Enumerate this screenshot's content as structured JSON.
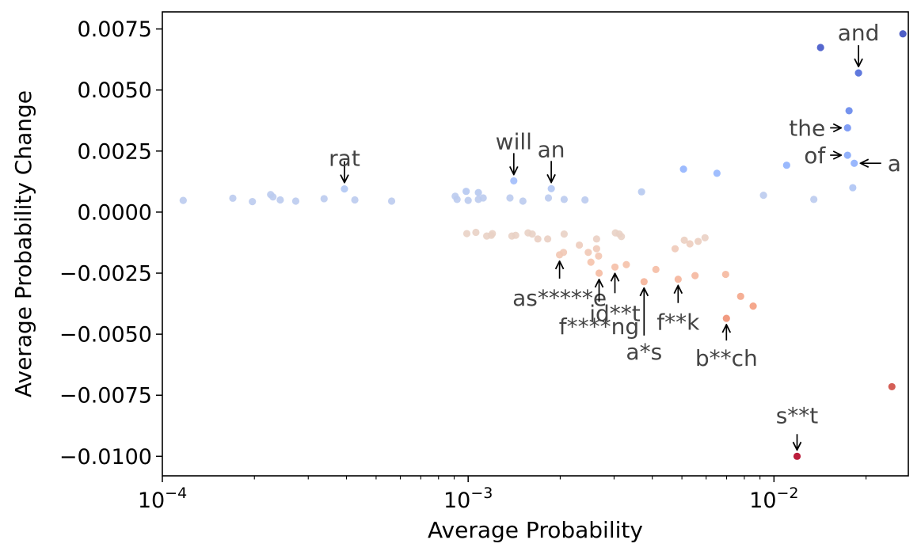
{
  "chart_data": {
    "type": "scatter",
    "title": "",
    "xlabel": "Average Probability",
    "ylabel": "Average Probability Change",
    "xscale": "log",
    "xlim": [
      0.0001,
      0.0275
    ],
    "ylim": [
      -0.0108,
      0.0082
    ],
    "grid": false,
    "legend": "none",
    "colormap": "coolwarm",
    "color_range": [
      -0.01,
      0.0073
    ],
    "x_ticks": [
      {
        "value": 0.0001,
        "base": "10",
        "exp": "−4"
      },
      {
        "value": 0.001,
        "base": "10",
        "exp": "−3"
      },
      {
        "value": 0.01,
        "base": "10",
        "exp": "−2"
      }
    ],
    "y_ticks": [
      {
        "value": 0.0075,
        "label": "0.0075"
      },
      {
        "value": 0.005,
        "label": "0.0050"
      },
      {
        "value": 0.0025,
        "label": "0.0025"
      },
      {
        "value": 0,
        "label": "0.0000"
      },
      {
        "value": -0.0025,
        "label": "−0.0025"
      },
      {
        "value": -0.005,
        "label": "−0.0050"
      },
      {
        "value": -0.0075,
        "label": "−0.0075"
      },
      {
        "value": -0.01,
        "label": "−0.0100"
      }
    ],
    "points": [
      [
        0.000117,
        0.00048
      ],
      [
        0.00017,
        0.00057
      ],
      [
        0.000197,
        0.00043
      ],
      [
        0.000226,
        0.00072
      ],
      [
        0.00023,
        0.00062
      ],
      [
        0.000243,
        0.0005
      ],
      [
        0.000273,
        0.00045
      ],
      [
        0.000338,
        0.00055
      ],
      [
        0.000394,
        0.00095
      ],
      [
        0.000426,
        0.0005
      ],
      [
        0.000562,
        0.00045
      ],
      [
        0.000907,
        0.00065
      ],
      [
        0.00092,
        0.00052
      ],
      [
        0.000985,
        0.00085
      ],
      [
        0.001,
        0.00048
      ],
      [
        0.00108,
        0.0008
      ],
      [
        0.00108,
        0.00052
      ],
      [
        0.00112,
        0.00058
      ],
      [
        0.00137,
        0.00058
      ],
      [
        0.00141,
        0.00128
      ],
      [
        0.00151,
        0.00045
      ],
      [
        0.00183,
        0.00058
      ],
      [
        0.00187,
        0.00096
      ],
      [
        0.00206,
        0.00052
      ],
      [
        0.00241,
        0.0005
      ],
      [
        0.00369,
        0.00083
      ],
      [
        0.00506,
        0.00176
      ],
      [
        0.00651,
        0.00159
      ],
      [
        0.00924,
        0.00069
      ],
      [
        0.011,
        0.00192
      ],
      [
        0.0135,
        0.00052
      ],
      [
        0.0142,
        0.00674
      ],
      [
        0.0174,
        0.00345
      ],
      [
        0.0174,
        0.00233
      ],
      [
        0.0176,
        0.00415
      ],
      [
        0.0181,
        0.001
      ],
      [
        0.0183,
        0.002
      ],
      [
        0.0189,
        0.0057
      ],
      [
        0.0264,
        0.0073
      ],
      [
        0.00099,
        -0.00088
      ],
      [
        0.00106,
        -0.00083
      ],
      [
        0.00115,
        -0.00098
      ],
      [
        0.00119,
        -0.00095
      ],
      [
        0.0012,
        -0.00088
      ],
      [
        0.00139,
        -0.00098
      ],
      [
        0.00143,
        -0.00095
      ],
      [
        0.00157,
        -0.00085
      ],
      [
        0.00162,
        -0.0009
      ],
      [
        0.00169,
        -0.0011
      ],
      [
        0.00182,
        -0.0011
      ],
      [
        0.00199,
        -0.00175
      ],
      [
        0.00205,
        -0.00165
      ],
      [
        0.00206,
        -0.0009
      ],
      [
        0.00231,
        -0.00135
      ],
      [
        0.00247,
        -0.00165
      ],
      [
        0.00252,
        -0.00205
      ],
      [
        0.00263,
        -0.0015
      ],
      [
        0.00263,
        -0.0011
      ],
      [
        0.00267,
        -0.0018
      ],
      [
        0.00268,
        -0.0025
      ],
      [
        0.00302,
        -0.00225
      ],
      [
        0.00303,
        -0.00085
      ],
      [
        0.00312,
        -0.0009
      ],
      [
        0.00317,
        -0.001
      ],
      [
        0.00329,
        -0.00215
      ],
      [
        0.00376,
        -0.00285
      ],
      [
        0.00411,
        -0.00235
      ],
      [
        0.00475,
        -0.0015
      ],
      [
        0.00486,
        -0.00275
      ],
      [
        0.00509,
        -0.00115
      ],
      [
        0.00531,
        -0.0013
      ],
      [
        0.00552,
        -0.0026
      ],
      [
        0.00565,
        -0.0012
      ],
      [
        0.00595,
        -0.00105
      ],
      [
        0.00695,
        -0.00255
      ],
      [
        0.00699,
        -0.00435
      ],
      [
        0.00778,
        -0.00345
      ],
      [
        0.00855,
        -0.00385
      ],
      [
        0.0119,
        -0.01
      ],
      [
        0.0243,
        -0.00715
      ]
    ],
    "annotations": [
      {
        "text": "rat",
        "point": [
          0.000394,
          0.00095
        ],
        "arrow": "down"
      },
      {
        "text": "will",
        "point": [
          0.00141,
          0.00128
        ],
        "arrow": "down"
      },
      {
        "text": "an",
        "point": [
          0.00187,
          0.00096
        ],
        "arrow": "down"
      },
      {
        "text": "and",
        "point": [
          0.0189,
          0.0057
        ],
        "arrow": "down"
      },
      {
        "text": "the",
        "point": [
          0.0174,
          0.00345
        ],
        "arrow": "right"
      },
      {
        "text": "of",
        "point": [
          0.0174,
          0.00233
        ],
        "arrow": "right"
      },
      {
        "text": "a",
        "point": [
          0.0183,
          0.002
        ],
        "arrow": "left"
      },
      {
        "text": "as*****e",
        "point": [
          0.00199,
          -0.00175
        ],
        "arrow": "up"
      },
      {
        "text": "f****ng",
        "point": [
          0.00268,
          -0.0025
        ],
        "arrow": "up"
      },
      {
        "text": "id**t",
        "point": [
          0.00302,
          -0.00225
        ],
        "arrow": "up"
      },
      {
        "text": "a*s",
        "point": [
          0.00376,
          -0.00285
        ],
        "arrow": "up"
      },
      {
        "text": "f**k",
        "point": [
          0.00486,
          -0.00275
        ],
        "arrow": "up"
      },
      {
        "text": "b**ch",
        "point": [
          0.00699,
          -0.00435
        ],
        "arrow": "up"
      },
      {
        "text": "s**t",
        "point": [
          0.0119,
          -0.01
        ],
        "arrow": "down"
      }
    ]
  }
}
